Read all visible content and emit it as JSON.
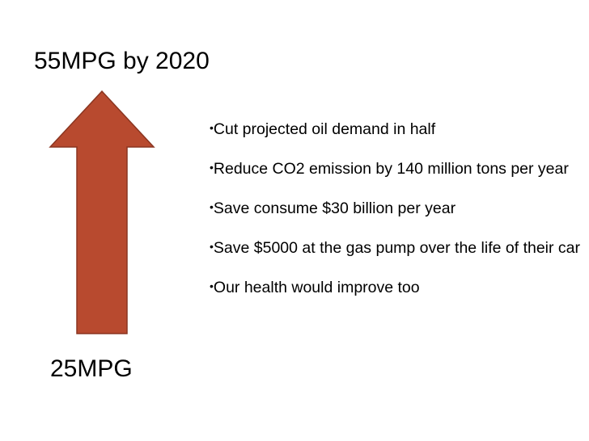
{
  "slide": {
    "top_label": "55MPG by 2020",
    "bottom_label": "25MPG",
    "arrow": {
      "fill_color": "#b84a2f",
      "stroke_color": "#8a3520",
      "direction": "up"
    },
    "bullet_symbol": "•",
    "bullets": [
      "Cut projected oil demand in half",
      "Reduce CO2 emission by 140 million tons per year",
      "Save consume $30 billion per year",
      "Save $5000 at the gas pump over the life of their car",
      "Our health would improve too"
    ]
  }
}
